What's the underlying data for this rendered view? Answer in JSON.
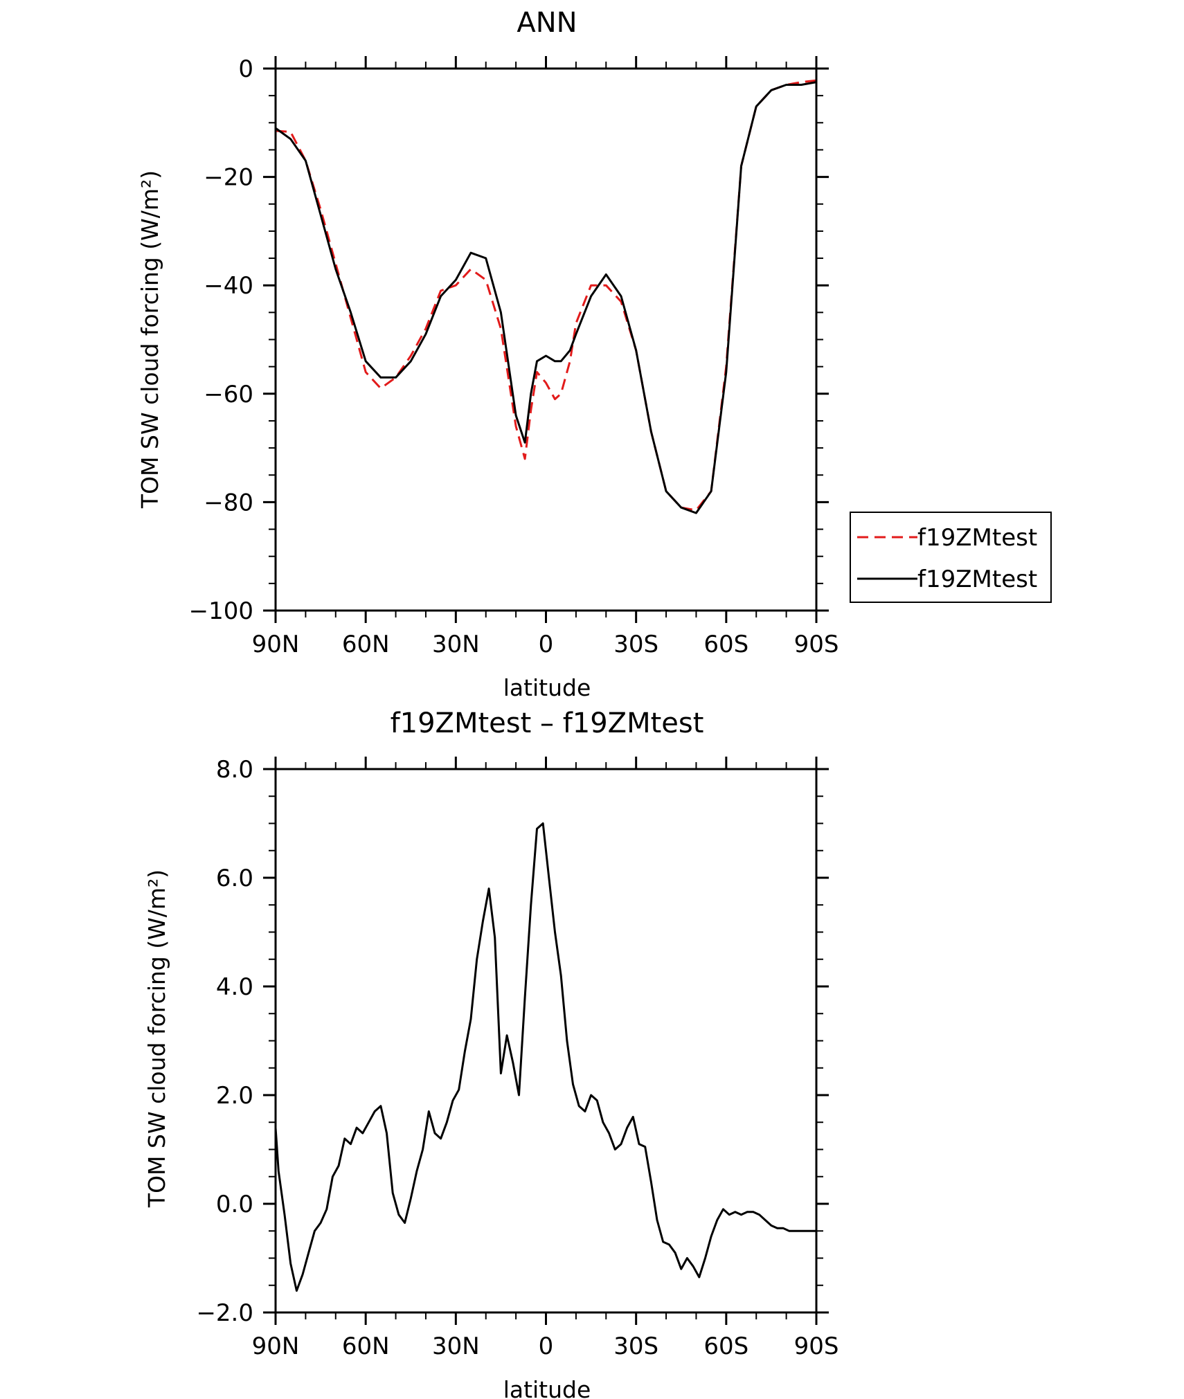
{
  "chart_data": [
    {
      "type": "line",
      "title": "ANN",
      "xlabel": "latitude",
      "ylabel": "TOM SW cloud forcing (W/m²)",
      "ylim": [
        -100,
        0
      ],
      "xlim": [
        -90,
        90
      ],
      "xticks": [
        "90N",
        "60N",
        "30N",
        "0",
        "30S",
        "60S",
        "90S"
      ],
      "yticks": [
        "0",
        "−20",
        "−40",
        "−60",
        "−80",
        "−100"
      ],
      "legend": "right",
      "x": [
        -90,
        -85,
        -80,
        -75,
        -70,
        -65,
        -60,
        -55,
        -50,
        -45,
        -40,
        -35,
        -30,
        -25,
        -20,
        -15,
        -10,
        -7,
        -5,
        -3,
        0,
        3,
        5,
        8,
        10,
        15,
        20,
        25,
        30,
        35,
        40,
        45,
        50,
        55,
        60,
        65,
        70,
        75,
        80,
        85,
        90
      ],
      "series": [
        {
          "name": "f19ZMtest",
          "color": "#e21b1b",
          "dash": true,
          "values": [
            -11.5,
            -11.7,
            -17,
            -26,
            -36,
            -46,
            -56,
            -59,
            -57,
            -53,
            -48,
            -41,
            -40,
            -37,
            -39,
            -48,
            -66,
            -72,
            -63,
            -56,
            -58,
            -61,
            -60,
            -54,
            -47,
            -40,
            -40,
            -43,
            -52,
            -67,
            -78,
            -81,
            -81.5,
            -78,
            -55,
            -18,
            -7,
            -4,
            -3,
            -2.5,
            -2.2
          ]
        },
        {
          "name": "f19ZMtest",
          "color": "#000000",
          "dash": false,
          "values": [
            -11,
            -13,
            -17,
            -27,
            -37,
            -45,
            -54,
            -57,
            -57,
            -54,
            -49,
            -42,
            -39,
            -34,
            -35,
            -45,
            -64,
            -69,
            -60,
            -54,
            -53,
            -54,
            -54,
            -52,
            -49,
            -42,
            -38,
            -42,
            -52,
            -67,
            -78,
            -81,
            -82,
            -78,
            -56,
            -18,
            -7,
            -4,
            -3,
            -3,
            -2.5
          ]
        }
      ]
    },
    {
      "type": "line",
      "title": "f19ZMtest – f19ZMtest",
      "xlabel": "latitude",
      "ylabel": "TOM SW cloud forcing (W/m²)",
      "ylim": [
        -2.0,
        8.0
      ],
      "xlim": [
        -90,
        90
      ],
      "xticks": [
        "90N",
        "60N",
        "30N",
        "0",
        "30S",
        "60S",
        "90S"
      ],
      "yticks": [
        "8.0",
        "6.0",
        "4.0",
        "2.0",
        "0.0",
        "−2.0"
      ],
      "x": [
        -90,
        -89,
        -87,
        -85,
        -83,
        -81,
        -79,
        -77,
        -75,
        -73,
        -71,
        -69,
        -67,
        -65,
        -63,
        -61,
        -59,
        -57,
        -55,
        -53,
        -51,
        -49,
        -47,
        -45,
        -43,
        -41,
        -39,
        -37,
        -35,
        -33,
        -31,
        -29,
        -27,
        -25,
        -23,
        -21,
        -19,
        -17,
        -15,
        -13,
        -11,
        -9,
        -7,
        -5,
        -3,
        -1,
        1,
        3,
        5,
        7,
        9,
        11,
        13,
        15,
        17,
        19,
        21,
        23,
        25,
        27,
        29,
        31,
        33,
        35,
        37,
        39,
        41,
        43,
        45,
        47,
        49,
        51,
        53,
        55,
        57,
        59,
        61,
        63,
        65,
        67,
        69,
        71,
        73,
        75,
        77,
        79,
        81,
        83,
        85,
        87,
        89,
        90
      ],
      "series": [
        {
          "name": "",
          "color": "#000000",
          "dash": false,
          "values": [
            1.4,
            0.6,
            -0.2,
            -1.1,
            -1.6,
            -1.3,
            -0.9,
            -0.5,
            -0.35,
            -0.1,
            0.5,
            0.7,
            1.2,
            1.1,
            1.4,
            1.3,
            1.5,
            1.7,
            1.8,
            1.3,
            0.2,
            -0.2,
            -0.35,
            0.1,
            0.6,
            1.0,
            1.7,
            1.3,
            1.2,
            1.5,
            1.9,
            2.1,
            2.8,
            3.4,
            4.5,
            5.2,
            5.8,
            4.9,
            2.4,
            3.1,
            2.6,
            2.0,
            3.8,
            5.5,
            6.9,
            7.0,
            6.0,
            5.0,
            4.2,
            3.0,
            2.2,
            1.8,
            1.7,
            2.0,
            1.9,
            1.5,
            1.3,
            1.0,
            1.1,
            1.4,
            1.6,
            1.1,
            1.05,
            0.4,
            -0.3,
            -0.7,
            -0.75,
            -0.9,
            -1.2,
            -1.0,
            -1.15,
            -1.35,
            -1.0,
            -0.6,
            -0.3,
            -0.1,
            -0.2,
            -0.15,
            -0.2,
            -0.15,
            -0.15,
            -0.2,
            -0.3,
            -0.4,
            -0.45,
            -0.45,
            -0.5,
            -0.5,
            -0.5,
            -0.5,
            -0.5,
            -0.5
          ]
        }
      ]
    }
  ]
}
